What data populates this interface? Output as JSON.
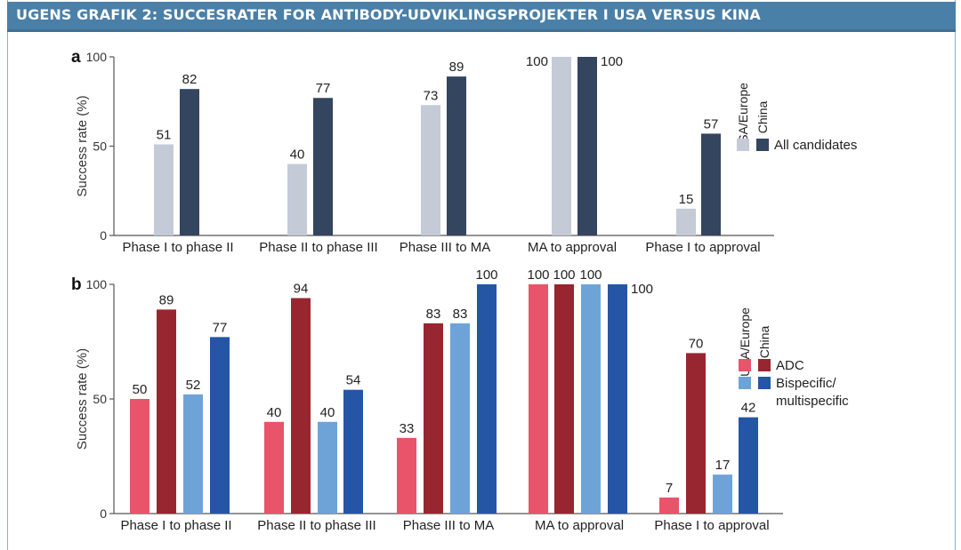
{
  "header": {
    "title": "UGENS GRAFIK 2: SUCCESRATER FOR ANTIBODY-UDVIKLINGSPROJEKTER I USA VERSUS KINA"
  },
  "chart_data": [
    {
      "type": "bar",
      "panel_label": "a",
      "ylabel": "Success rate (%)",
      "ylim": [
        0,
        100
      ],
      "yticks": [
        "0",
        "50",
        "100"
      ],
      "categories": [
        "Phase I to phase II",
        "Phase II to phase III",
        "Phase III to MA",
        "MA to approval",
        "Phase I to approval"
      ],
      "series": [
        {
          "name": "USA/Europe",
          "group": "All candidates",
          "color": "#c4cad6",
          "values": [
            51,
            40,
            73,
            100,
            15
          ]
        },
        {
          "name": "China",
          "group": "All candidates",
          "color": "#34455f",
          "values": [
            82,
            77,
            89,
            100,
            57
          ]
        }
      ],
      "legend": {
        "columns": [
          "USA/Europe",
          "China"
        ],
        "rows": [
          "All candidates"
        ],
        "placement": "right"
      }
    },
    {
      "type": "bar",
      "panel_label": "b",
      "ylabel": "Success rate (%)",
      "ylim": [
        0,
        100
      ],
      "yticks": [
        "0",
        "50",
        "100"
      ],
      "categories": [
        "Phase I to phase II",
        "Phase II to phase III",
        "Phase III to MA",
        "MA to approval",
        "Phase I to approval"
      ],
      "series": [
        {
          "name": "USA/Europe",
          "group": "ADC",
          "color": "#e8546a",
          "values": [
            50,
            40,
            33,
            100,
            7
          ]
        },
        {
          "name": "China",
          "group": "ADC",
          "color": "#982630",
          "values": [
            89,
            94,
            83,
            100,
            70
          ]
        },
        {
          "name": "USA/Europe",
          "group": "Bispecific/multispecific",
          "color": "#6ea3d8",
          "values": [
            52,
            40,
            83,
            100,
            17
          ]
        },
        {
          "name": "China",
          "group": "Bispecific/multispecific",
          "color": "#2456a5",
          "values": [
            77,
            54,
            100,
            100,
            42
          ]
        }
      ],
      "legend": {
        "columns": [
          "USA/Europe",
          "China"
        ],
        "rows": [
          "ADC",
          "Bispecific/",
          "multispecific"
        ],
        "placement": "right"
      }
    }
  ]
}
